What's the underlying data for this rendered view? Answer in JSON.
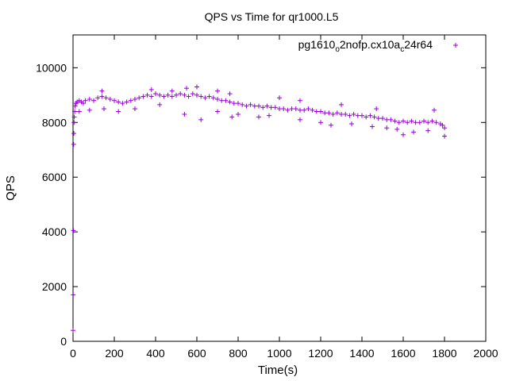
{
  "chart_data": {
    "type": "scatter",
    "title": "QPS vs Time for qr1000.L5",
    "xlabel": "Time(s)",
    "ylabel": "QPS",
    "xlim": [
      0,
      2000
    ],
    "ylim": [
      0,
      11200
    ],
    "xticks": [
      0,
      200,
      400,
      600,
      800,
      1000,
      1200,
      1400,
      1600,
      1800,
      2000
    ],
    "yticks": [
      0,
      2000,
      4000,
      6000,
      8000,
      10000
    ],
    "grid": false,
    "legend_position": "top-right",
    "marker": "+",
    "series": [
      {
        "name": "pg1610_o2nofp.cx10a_c24r64",
        "legend": {
          "base": "pg1610",
          "sub1": "o",
          "mid": "2nofp.cx10a",
          "sub2": "c",
          "tail": "24r64"
        },
        "color": "#9400d3",
        "points": [
          [
            0,
            400
          ],
          [
            1,
            1700
          ],
          [
            2,
            4050
          ],
          [
            3,
            7200
          ],
          [
            4,
            7600
          ],
          [
            5,
            8000
          ],
          [
            6,
            8200
          ],
          [
            8,
            8400
          ],
          [
            10,
            8600
          ],
          [
            15,
            8700
          ],
          [
            20,
            8750
          ],
          [
            30,
            8800
          ],
          [
            40,
            8750
          ],
          [
            50,
            8700
          ],
          [
            60,
            8800
          ],
          [
            80,
            8850
          ],
          [
            100,
            8800
          ],
          [
            120,
            8900
          ],
          [
            140,
            8950
          ],
          [
            160,
            8900
          ],
          [
            180,
            8850
          ],
          [
            200,
            8800
          ],
          [
            220,
            8750
          ],
          [
            240,
            8700
          ],
          [
            260,
            8750
          ],
          [
            280,
            8800
          ],
          [
            300,
            8850
          ],
          [
            320,
            8900
          ],
          [
            340,
            8950
          ],
          [
            360,
            9000
          ],
          [
            380,
            8950
          ],
          [
            400,
            9050
          ],
          [
            420,
            9000
          ],
          [
            440,
            8950
          ],
          [
            460,
            9000
          ],
          [
            480,
            8950
          ],
          [
            500,
            9000
          ],
          [
            520,
            9050
          ],
          [
            540,
            9000
          ],
          [
            560,
            8950
          ],
          [
            580,
            9050
          ],
          [
            600,
            9000
          ],
          [
            620,
            8950
          ],
          [
            640,
            8900
          ],
          [
            660,
            8950
          ],
          [
            680,
            8900
          ],
          [
            700,
            8850
          ],
          [
            720,
            8800
          ],
          [
            740,
            8800
          ],
          [
            760,
            8750
          ],
          [
            780,
            8700
          ],
          [
            800,
            8700
          ],
          [
            820,
            8650
          ],
          [
            840,
            8600
          ],
          [
            860,
            8650
          ],
          [
            880,
            8600
          ],
          [
            900,
            8600
          ],
          [
            920,
            8550
          ],
          [
            940,
            8600
          ],
          [
            960,
            8550
          ],
          [
            980,
            8550
          ],
          [
            1000,
            8500
          ],
          [
            1020,
            8500
          ],
          [
            1040,
            8450
          ],
          [
            1060,
            8500
          ],
          [
            1080,
            8500
          ],
          [
            1100,
            8450
          ],
          [
            1120,
            8450
          ],
          [
            1140,
            8500
          ],
          [
            1160,
            8450
          ],
          [
            1180,
            8400
          ],
          [
            1200,
            8400
          ],
          [
            1220,
            8350
          ],
          [
            1240,
            8350
          ],
          [
            1260,
            8300
          ],
          [
            1280,
            8350
          ],
          [
            1300,
            8300
          ],
          [
            1320,
            8300
          ],
          [
            1340,
            8250
          ],
          [
            1360,
            8300
          ],
          [
            1380,
            8250
          ],
          [
            1400,
            8250
          ],
          [
            1420,
            8200
          ],
          [
            1440,
            8250
          ],
          [
            1460,
            8200
          ],
          [
            1480,
            8150
          ],
          [
            1500,
            8150
          ],
          [
            1520,
            8100
          ],
          [
            1540,
            8100
          ],
          [
            1560,
            8050
          ],
          [
            1580,
            8000
          ],
          [
            1600,
            8050
          ],
          [
            1620,
            8000
          ],
          [
            1640,
            8050
          ],
          [
            1660,
            8000
          ],
          [
            1680,
            8000
          ],
          [
            1700,
            8050
          ],
          [
            1720,
            8000
          ],
          [
            1740,
            8050
          ],
          [
            1760,
            8000
          ],
          [
            1780,
            7950
          ],
          [
            1790,
            7900
          ],
          [
            1800,
            7800
          ],
          [
            140,
            9150
          ],
          [
            380,
            9200
          ],
          [
            480,
            9150
          ],
          [
            550,
            9250
          ],
          [
            600,
            9300
          ],
          [
            700,
            9150
          ],
          [
            760,
            9050
          ],
          [
            30,
            8400
          ],
          [
            80,
            8450
          ],
          [
            150,
            8500
          ],
          [
            220,
            8400
          ],
          [
            300,
            8500
          ],
          [
            420,
            8650
          ],
          [
            540,
            8300
          ],
          [
            620,
            8100
          ],
          [
            700,
            8400
          ],
          [
            770,
            8200
          ],
          [
            800,
            8300
          ],
          [
            900,
            8200
          ],
          [
            950,
            8250
          ],
          [
            1100,
            8100
          ],
          [
            1200,
            8000
          ],
          [
            1250,
            7900
          ],
          [
            1350,
            7950
          ],
          [
            1450,
            7850
          ],
          [
            1520,
            7800
          ],
          [
            1570,
            7750
          ],
          [
            1600,
            7550
          ],
          [
            1650,
            7650
          ],
          [
            1720,
            7700
          ],
          [
            1800,
            7500
          ],
          [
            1750,
            8450
          ],
          [
            1470,
            8500
          ],
          [
            1300,
            8650
          ],
          [
            1100,
            8800
          ],
          [
            1000,
            8900
          ]
        ]
      }
    ]
  }
}
